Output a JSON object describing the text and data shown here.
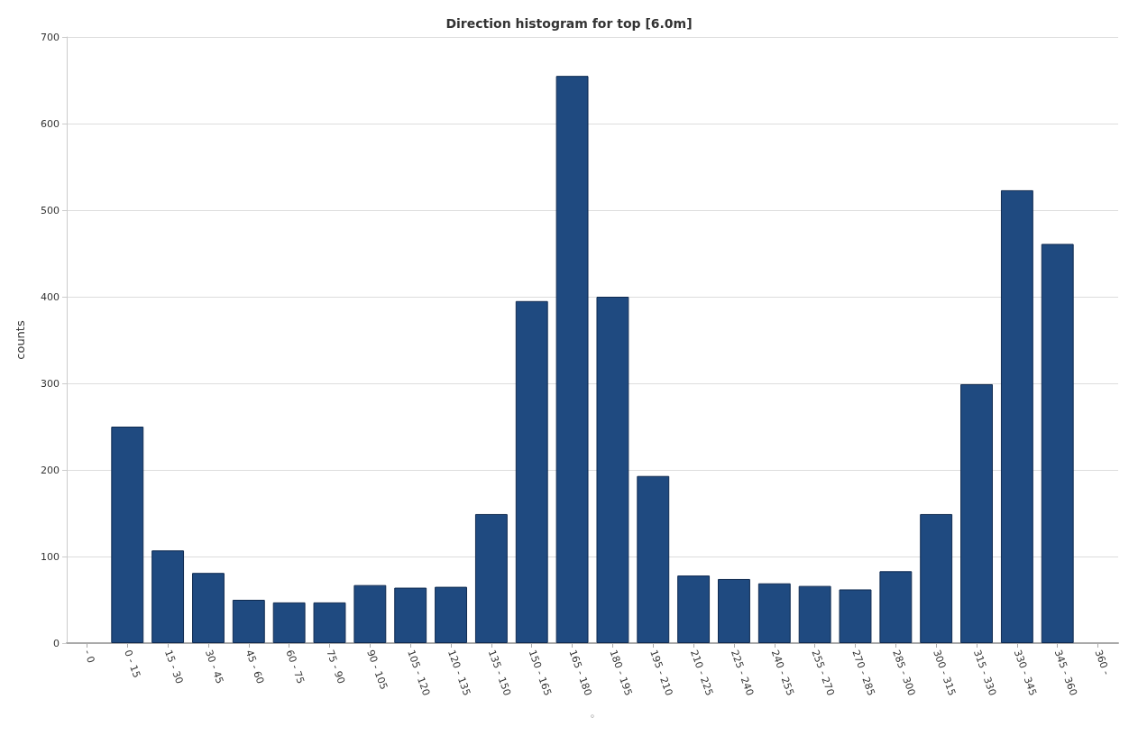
{
  "chart_data": {
    "type": "bar",
    "title": "Direction histogram for top [6.0m]",
    "xlabel": "°",
    "ylabel": "counts",
    "categories": [
      "- 0",
      "0 - 15",
      "15 - 30",
      "30 - 45",
      "45 - 60",
      "60 - 75",
      "75 - 90",
      "90 - 105",
      "105 - 120",
      "120 - 135",
      "135 - 150",
      "150 - 165",
      "165 - 180",
      "180 - 195",
      "195 - 210",
      "210 - 225",
      "225 - 240",
      "240 - 255",
      "255 - 270",
      "270 - 285",
      "285 - 300",
      "300 - 315",
      "315 - 330",
      "330 - 345",
      "345 - 360",
      "360 -"
    ],
    "values": [
      null,
      250,
      107,
      81,
      50,
      47,
      47,
      67,
      64,
      65,
      149,
      395,
      655,
      400,
      193,
      78,
      74,
      69,
      66,
      62,
      83,
      149,
      299,
      523,
      461,
      null
    ],
    "color": "#1f4a80",
    "ylim": [
      0,
      700
    ],
    "yticks": [
      0,
      100,
      200,
      300,
      400,
      500,
      600,
      700
    ],
    "grid": "y"
  }
}
